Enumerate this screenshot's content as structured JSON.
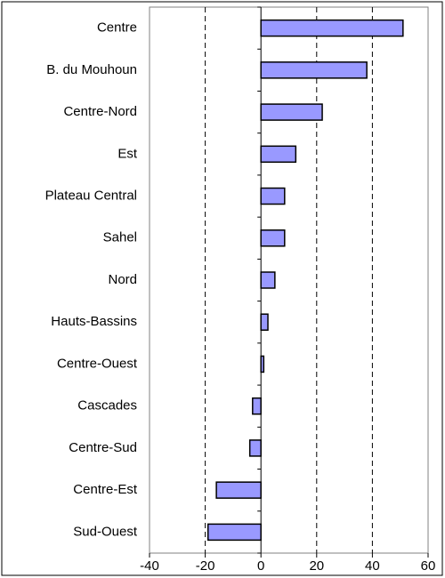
{
  "chart_data": {
    "type": "bar",
    "orientation": "horizontal",
    "categories": [
      "Centre",
      "B. du Mouhoun",
      "Centre-Nord",
      "Est",
      "Plateau Central",
      "Sahel",
      "Nord",
      "Hauts-Bassins",
      "Centre-Ouest",
      "Cascades",
      "Centre-Sud",
      "Centre-Est",
      "Sud-Ouest"
    ],
    "values": [
      51,
      38,
      22,
      12.5,
      8.5,
      8.5,
      5,
      2.5,
      1,
      -3,
      -4,
      -16,
      -19
    ],
    "color": "#9999ff",
    "xlim": [
      -40,
      60
    ],
    "xticks": [
      -40,
      -20,
      0,
      20,
      40,
      60
    ],
    "grid": true
  }
}
